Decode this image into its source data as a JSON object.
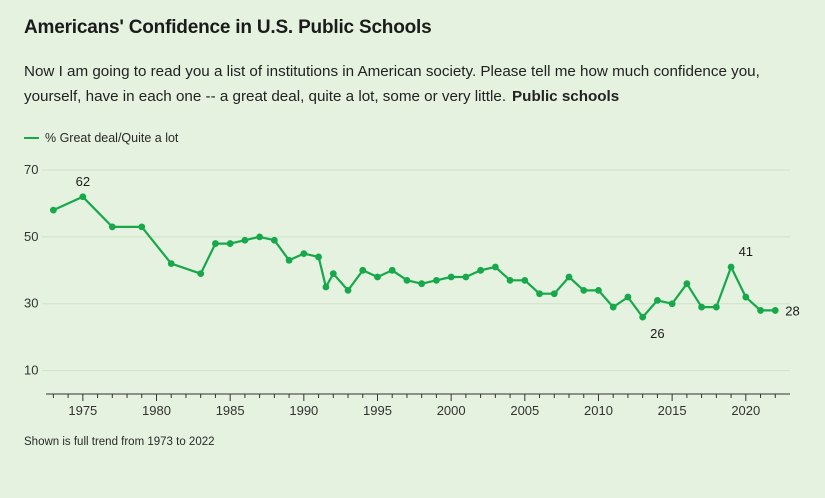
{
  "title": "Americans' Confidence in U.S. Public Schools",
  "question": "Now I am going to read you a list of institutions in American society. Please tell me how much confidence you, yourself, have in each one -- a great deal, quite a lot, some or very little.",
  "question_emphasis": "Public schools",
  "note": "Shown is full trend from 1973 to 2022",
  "colors": {
    "line": "#16a84a",
    "background": "#e4f2df",
    "grid": "#cfe3c8"
  },
  "chart_data": {
    "type": "line",
    "legend": {
      "position": "top-left"
    },
    "grid": true,
    "xlim": [
      1972.5,
      2023
    ],
    "ylim": [
      3,
      73
    ],
    "x_ticks": [
      1975,
      1980,
      1985,
      1990,
      1995,
      2000,
      2005,
      2010,
      2015,
      2020
    ],
    "y_ticks": [
      10,
      30,
      50,
      70
    ],
    "series": [
      {
        "name": "% Great deal/Quite a lot",
        "x": [
          1973,
          1975,
          1977,
          1979,
          1981,
          1983,
          1984,
          1985,
          1986,
          1987,
          1988,
          1989,
          1990,
          1991,
          1991.5,
          1992,
          1993,
          1994,
          1995,
          1996,
          1997,
          1998,
          1999,
          2000,
          2001,
          2002,
          2003,
          2004,
          2005,
          2006,
          2007,
          2008,
          2009,
          2010,
          2011,
          2012,
          2013,
          2014,
          2015,
          2016,
          2017,
          2018,
          2019,
          2020,
          2021,
          2022
        ],
        "values": [
          58,
          62,
          53,
          53,
          42,
          39,
          48,
          48,
          49,
          50,
          49,
          43,
          45,
          44,
          35,
          39,
          34,
          40,
          38,
          40,
          37,
          36,
          37,
          38,
          38,
          40,
          41,
          37,
          37,
          33,
          33,
          38,
          34,
          34,
          29,
          32,
          26,
          31,
          30,
          36,
          29,
          29,
          41,
          32,
          28,
          28
        ]
      }
    ],
    "annotations": [
      {
        "x": 1975,
        "y": 62,
        "text": "62"
      },
      {
        "x": 2014,
        "y": 26,
        "text": "26"
      },
      {
        "x": 2020,
        "y": 41,
        "text": "41"
      },
      {
        "x": 2022,
        "y": 28,
        "text": "28"
      }
    ]
  }
}
